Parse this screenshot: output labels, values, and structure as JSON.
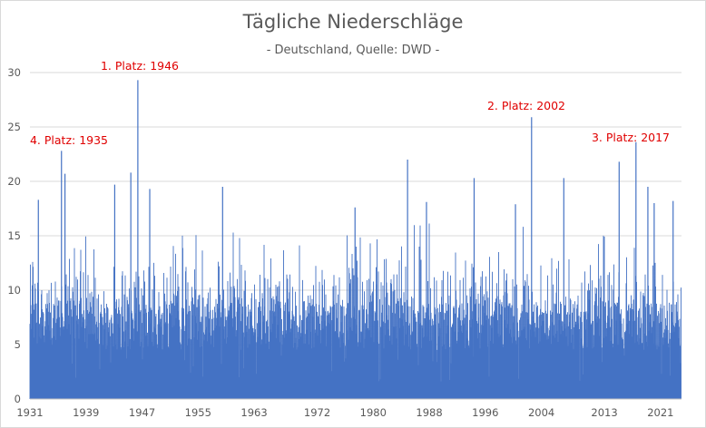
{
  "chart_data": {
    "type": "bar",
    "title": "Tägliche Niederschläge",
    "subtitle": "- Deutschland, Quelle: DWD -",
    "xlabel": "",
    "ylabel": "",
    "x_range": [
      1931,
      2024
    ],
    "ylim": [
      0,
      30
    ],
    "y_ticks": [
      "0",
      "5",
      "10",
      "15",
      "20",
      "25",
      "30"
    ],
    "x_ticks": [
      "1931",
      "1939",
      "1947",
      "1955",
      "1963",
      "1972",
      "1980",
      "1988",
      "1996",
      "2004",
      "2013",
      "2021"
    ],
    "grid": true,
    "series_color": "#4472c4",
    "annotation_color": "#e00000",
    "peaks": [
      {
        "x": 1946.4,
        "y": 29.3
      },
      {
        "x": 2002.6,
        "y": 25.9
      },
      {
        "x": 2017.5,
        "y": 23.6
      },
      {
        "x": 1935.5,
        "y": 22.8
      },
      {
        "x": 1984.9,
        "y": 22.0
      },
      {
        "x": 2015.1,
        "y": 21.8
      },
      {
        "x": 1945.4,
        "y": 20.8
      },
      {
        "x": 1936.0,
        "y": 20.7
      },
      {
        "x": 1994.4,
        "y": 20.3
      },
      {
        "x": 2007.2,
        "y": 20.3
      },
      {
        "x": 1943.1,
        "y": 19.7
      },
      {
        "x": 1958.5,
        "y": 19.5
      },
      {
        "x": 2019.2,
        "y": 19.5
      },
      {
        "x": 1948.1,
        "y": 19.3
      },
      {
        "x": 1932.2,
        "y": 18.3
      },
      {
        "x": 2022.8,
        "y": 18.2
      },
      {
        "x": 2020.1,
        "y": 18.0
      },
      {
        "x": 1987.6,
        "y": 18.1
      },
      {
        "x": 2000.3,
        "y": 17.9
      },
      {
        "x": 1977.4,
        "y": 17.6
      }
    ],
    "annotations": [
      {
        "label": "1. Platz: 1946"
      },
      {
        "label": "2. Platz: 2002"
      },
      {
        "label": "3. Platz: 2017"
      },
      {
        "label": "4. Platz: 1935"
      }
    ]
  }
}
